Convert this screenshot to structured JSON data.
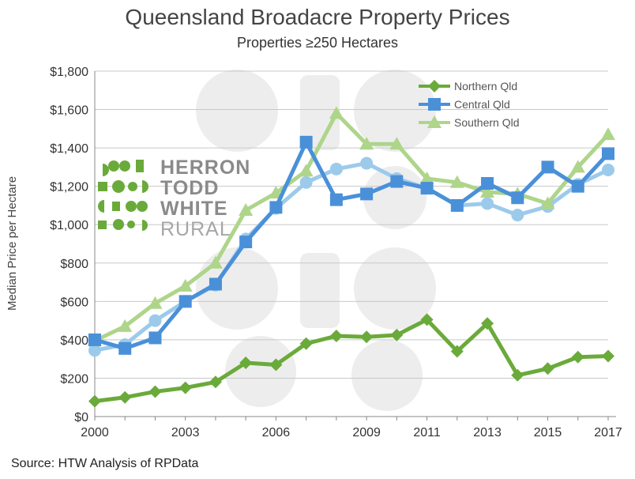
{
  "title": "Queensland Broadacre Property Prices",
  "subtitle": "Properties ≥250 Hectares",
  "source": "Source: HTW Analysis of RPData",
  "logo": {
    "lines": [
      "HERRON",
      "TODD",
      "WHITE",
      "RURAL"
    ]
  },
  "colors": {
    "northern": "#6aaa3a",
    "central": "#4a90d9",
    "southern": "#aed58a",
    "central_smooth": "#9ccaeb"
  },
  "chart_data": {
    "type": "line",
    "ylabel": "Median Price per Hectare",
    "xlim": [
      2000,
      2017
    ],
    "ylim": [
      0,
      1800
    ],
    "x_ticks": [
      "2000",
      "2003",
      "2006",
      "2009",
      "2011",
      "2013",
      "2015",
      "2017"
    ],
    "y_ticks": [
      "$0",
      "$200",
      "$400",
      "$600",
      "$800",
      "$1,000",
      "$1,200",
      "$1,400",
      "$1,600",
      "$1,800"
    ],
    "grid": true,
    "legend_position": "top-right",
    "x": [
      2000,
      2001,
      2002,
      2003,
      2004,
      2005,
      2006,
      2007,
      2008,
      2009,
      2010,
      2011,
      2012,
      2013,
      2014,
      2015,
      2016,
      2017
    ],
    "series": [
      {
        "name": "Northern Qld",
        "marker": "diamond",
        "values": [
          80,
          100,
          130,
          150,
          180,
          280,
          270,
          380,
          420,
          415,
          425,
          505,
          340,
          485,
          215,
          250,
          310,
          315
        ]
      },
      {
        "name": "Central Qld",
        "marker": "square",
        "values": [
          400,
          355,
          410,
          600,
          690,
          910,
          1090,
          1430,
          1130,
          1160,
          1225,
          1190,
          1100,
          1215,
          1140,
          1300,
          1200,
          1370
        ]
      },
      {
        "name": "Southern Qld",
        "marker": "triangle",
        "values": [
          395,
          470,
          590,
          680,
          800,
          1075,
          1165,
          1280,
          1580,
          1420,
          1420,
          1240,
          1220,
          1170,
          1160,
          1110,
          1300,
          1470
        ]
      },
      {
        "marker": "circle",
        "values": [
          345,
          375,
          500,
          600,
          685,
          925,
          1085,
          1220,
          1290,
          1320,
          1240,
          1190,
          1100,
          1110,
          1050,
          1095,
          1210,
          1285
        ]
      }
    ]
  }
}
